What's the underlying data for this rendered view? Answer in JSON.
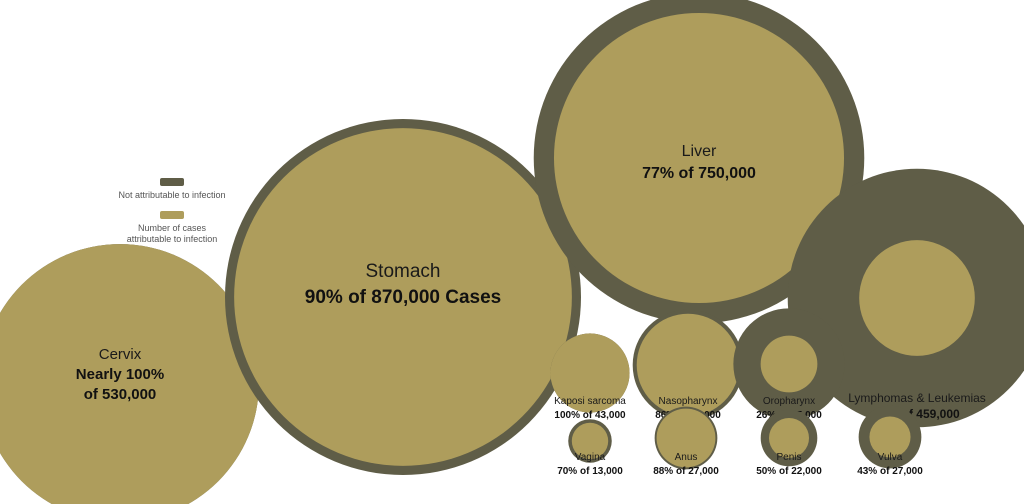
{
  "colors": {
    "attributable": "#ae9d5c",
    "not_attributable": "#5f5d47"
  },
  "legend": {
    "not_attributable": "Not attributable to infection",
    "attributable_line1": "Number of cases",
    "attributable_line2": "attributable to infection"
  },
  "chart_data": {
    "type": "bubble",
    "title": "",
    "value_unit": "cases",
    "items": [
      {
        "id": "cervix",
        "name": "Cervix",
        "label_line1": "Nearly 100%",
        "label_line2": "of 530,000",
        "percent": 100,
        "total": 530000
      },
      {
        "id": "stomach",
        "name": "Stomach",
        "label_line1": "90% of 870,000 Cases",
        "percent": 90,
        "total": 870000
      },
      {
        "id": "liver",
        "name": "Liver",
        "label_line1": "77% of 750,000",
        "percent": 77,
        "total": 750000
      },
      {
        "id": "lymphomas",
        "name": "Lymphomas & Leukemias",
        "label_line1": "20% of 459,000",
        "percent": 20,
        "total": 459000
      },
      {
        "id": "kaposi",
        "name": "Kaposi sarcoma",
        "label_line1": "100% of 43,000",
        "percent": 100,
        "total": 43000
      },
      {
        "id": "nasopharynx",
        "name": "Nasopharynx",
        "label_line1": "86% of 84,000",
        "percent": 86,
        "total": 84000
      },
      {
        "id": "oropharynx",
        "name": "Oropharynx",
        "label_line1": "26% of 85,000",
        "percent": 26,
        "total": 85000
      },
      {
        "id": "vagina",
        "name": "Vagina",
        "label_line1": "70% of 13,000",
        "percent": 70,
        "total": 13000
      },
      {
        "id": "anus",
        "name": "Anus",
        "label_line1": "88% of 27,000",
        "percent": 88,
        "total": 27000
      },
      {
        "id": "penis",
        "name": "Penis",
        "label_line1": "50% of 22,000",
        "percent": 50,
        "total": 22000
      },
      {
        "id": "vulva",
        "name": "Vulva",
        "label_line1": "43% of 27,000",
        "percent": 43,
        "total": 27000
      }
    ]
  }
}
